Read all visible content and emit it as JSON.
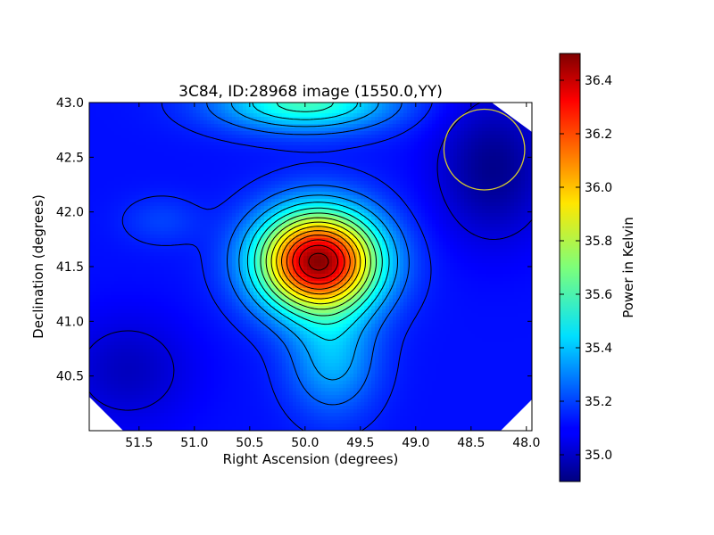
{
  "chart_data": {
    "type": "heatmap",
    "title": "3C84, ID:28968 image (1550.0,YY)",
    "xlabel": "Right Ascension (degrees)",
    "ylabel": "Declination (degrees)",
    "xlim": [
      51.95,
      47.95
    ],
    "ylim": [
      40.0,
      43.0
    ],
    "x_ticks": [
      51.5,
      51.0,
      50.5,
      50.0,
      49.5,
      49.0,
      48.5,
      48.0
    ],
    "x_tick_labels": [
      "51.5",
      "51.0",
      "50.5",
      "50.0",
      "49.5",
      "49.0",
      "48.5",
      "48.0"
    ],
    "y_ticks": [
      40.5,
      41.0,
      41.5,
      42.0,
      42.5,
      43.0
    ],
    "y_tick_labels": [
      "40.5",
      "41.0",
      "41.5",
      "42.0",
      "42.5",
      "43.0"
    ],
    "colorbar": {
      "label": "Power in Kelvin",
      "range": [
        34.9,
        36.5
      ],
      "ticks": [
        35.0,
        35.2,
        35.4,
        35.6,
        35.8,
        36.0,
        36.2,
        36.4
      ],
      "tick_labels": [
        "35.0",
        "35.2",
        "35.4",
        "35.6",
        "35.8",
        "36.0",
        "36.2",
        "36.4"
      ],
      "colormap": "jet"
    },
    "background_level": 35.12,
    "sources": [
      {
        "ra": 49.88,
        "dec": 41.55,
        "peak": 36.48,
        "sigma_ra": 0.38,
        "sigma_dec": 0.32
      },
      {
        "ra": 49.75,
        "dec": 40.65,
        "peak": 35.38,
        "sigma_ra": 0.28,
        "sigma_dec": 0.35
      },
      {
        "ra": 50.0,
        "dec": 43.0,
        "peak": 35.6,
        "sigma_ra": 0.55,
        "sigma_dec": 0.18
      },
      {
        "ra": 51.3,
        "dec": 41.92,
        "peak": 35.2,
        "sigma_ra": 0.25,
        "sigma_dec": 0.16
      },
      {
        "ra": 48.3,
        "dec": 42.4,
        "peak": 34.92,
        "sigma_ra": 0.35,
        "sigma_dec": 0.45
      },
      {
        "ra": 51.6,
        "dec": 40.55,
        "peak": 35.0,
        "sigma_ra": 0.4,
        "sigma_dec": 0.35
      }
    ],
    "beam": {
      "ra": 48.38,
      "dec": 42.57,
      "radius_deg": 0.365,
      "color": "#d4c830"
    },
    "contour_color": "#000000",
    "grid": false
  }
}
